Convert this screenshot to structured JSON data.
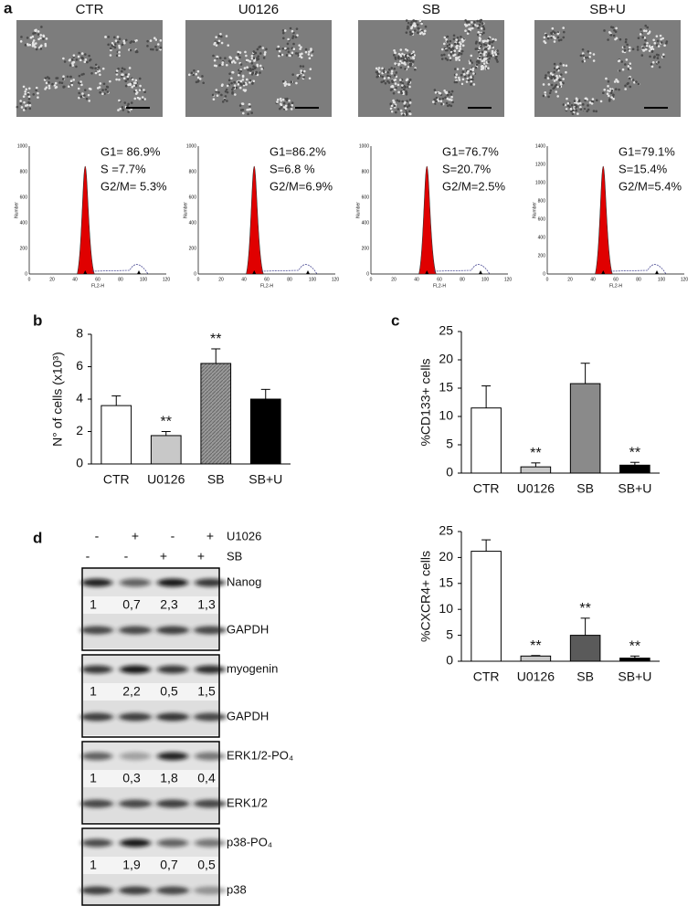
{
  "panel_a": {
    "label": "a",
    "x_label": "FL2-H",
    "y_label": "Number",
    "x_ticks": [
      0,
      20,
      40,
      60,
      80,
      100,
      120
    ],
    "conditions": [
      {
        "name": "CTR",
        "stats": [
          "G1= 86.9%",
          "S =7.7%",
          "G2/M= 5.3%"
        ],
        "y_ticks": [
          0,
          200,
          400,
          600,
          800,
          1000
        ]
      },
      {
        "name": "U0126",
        "stats": [
          "G1=86.2%",
          "S=6.8 %",
          "G2/M=6.9%"
        ],
        "y_ticks": [
          0,
          200,
          400,
          600,
          800,
          1000
        ]
      },
      {
        "name": "SB",
        "stats": [
          "G1=76.7%",
          "S=20.7%",
          "G2/M=2.5%"
        ],
        "y_ticks": [
          0,
          200,
          400,
          600,
          800,
          1000
        ]
      },
      {
        "name": "SB+U",
        "stats": [
          "G1=79.1%",
          "S=15.4%",
          "G2/M=5.4%"
        ],
        "y_ticks": [
          0,
          200,
          400,
          600,
          800,
          1000,
          1200,
          1400
        ]
      }
    ]
  },
  "chart_data": [
    {
      "type": "bar",
      "panel": "b",
      "ylabel": "N° of cells (x10³)",
      "categories": [
        "CTR",
        "U0126",
        "SB",
        "SB+U"
      ],
      "values": [
        3.6,
        1.75,
        6.2,
        4.0
      ],
      "errors": [
        0.6,
        0.25,
        0.9,
        0.6
      ],
      "colors": [
        "#ffffff",
        "#c8c8c8",
        "#8a8a8a",
        "#000000"
      ],
      "significance": [
        null,
        "**",
        "**",
        null
      ],
      "ylim": [
        0,
        8
      ],
      "yticks": [
        0,
        2,
        4,
        6,
        8
      ]
    },
    {
      "type": "bar",
      "panel": "c",
      "ylabel": "%CD133+ cells",
      "categories": [
        "CTR",
        "U0126",
        "SB",
        "SB+U"
      ],
      "values": [
        11.5,
        1.1,
        15.8,
        1.4
      ],
      "errors": [
        3.9,
        0.7,
        3.6,
        0.5
      ],
      "colors": [
        "#ffffff",
        "#c8c8c8",
        "#8a8a8a",
        "#000000"
      ],
      "significance": [
        null,
        "**",
        null,
        "**"
      ],
      "ylim": [
        0,
        25
      ],
      "yticks": [
        0,
        5,
        10,
        15,
        20,
        25
      ]
    },
    {
      "type": "bar",
      "ylabel": "%CXCR4+ cells",
      "categories": [
        "CTR",
        "U0126",
        "SB",
        "SB+U"
      ],
      "values": [
        21.2,
        1.0,
        5.0,
        0.6
      ],
      "errors": [
        2.2,
        0.1,
        3.3,
        0.4
      ],
      "colors": [
        "#ffffff",
        "#c8c8c8",
        "#5a5a5a",
        "#000000"
      ],
      "significance": [
        null,
        "**",
        "**",
        "**"
      ],
      "ylim": [
        0,
        25
      ],
      "yticks": [
        0,
        5,
        10,
        15,
        20,
        25
      ]
    }
  ],
  "panel_d": {
    "label": "d",
    "treatments": [
      {
        "name": "U1026",
        "signs": [
          "-",
          "+",
          "-",
          "+"
        ]
      },
      {
        "name": "SB",
        "signs": [
          "-",
          "-",
          "+",
          "+"
        ]
      }
    ],
    "blots": [
      {
        "target": "Nanog",
        "quant": [
          "1",
          "0,7",
          "2,3",
          "1,3"
        ],
        "control": "GAPDH"
      },
      {
        "target": "myogenin",
        "quant": [
          "1",
          "2,2",
          "0,5",
          "1,5"
        ],
        "control": "GAPDH"
      },
      {
        "target": "ERK1/2-PO₄",
        "quant": [
          "1",
          "0,3",
          "1,8",
          "0,4"
        ],
        "control": "ERK1/2"
      },
      {
        "target": "p38-PO₄",
        "quant": [
          "1",
          "1,9",
          "0,7",
          "0,5"
        ],
        "control": "p38"
      }
    ]
  }
}
